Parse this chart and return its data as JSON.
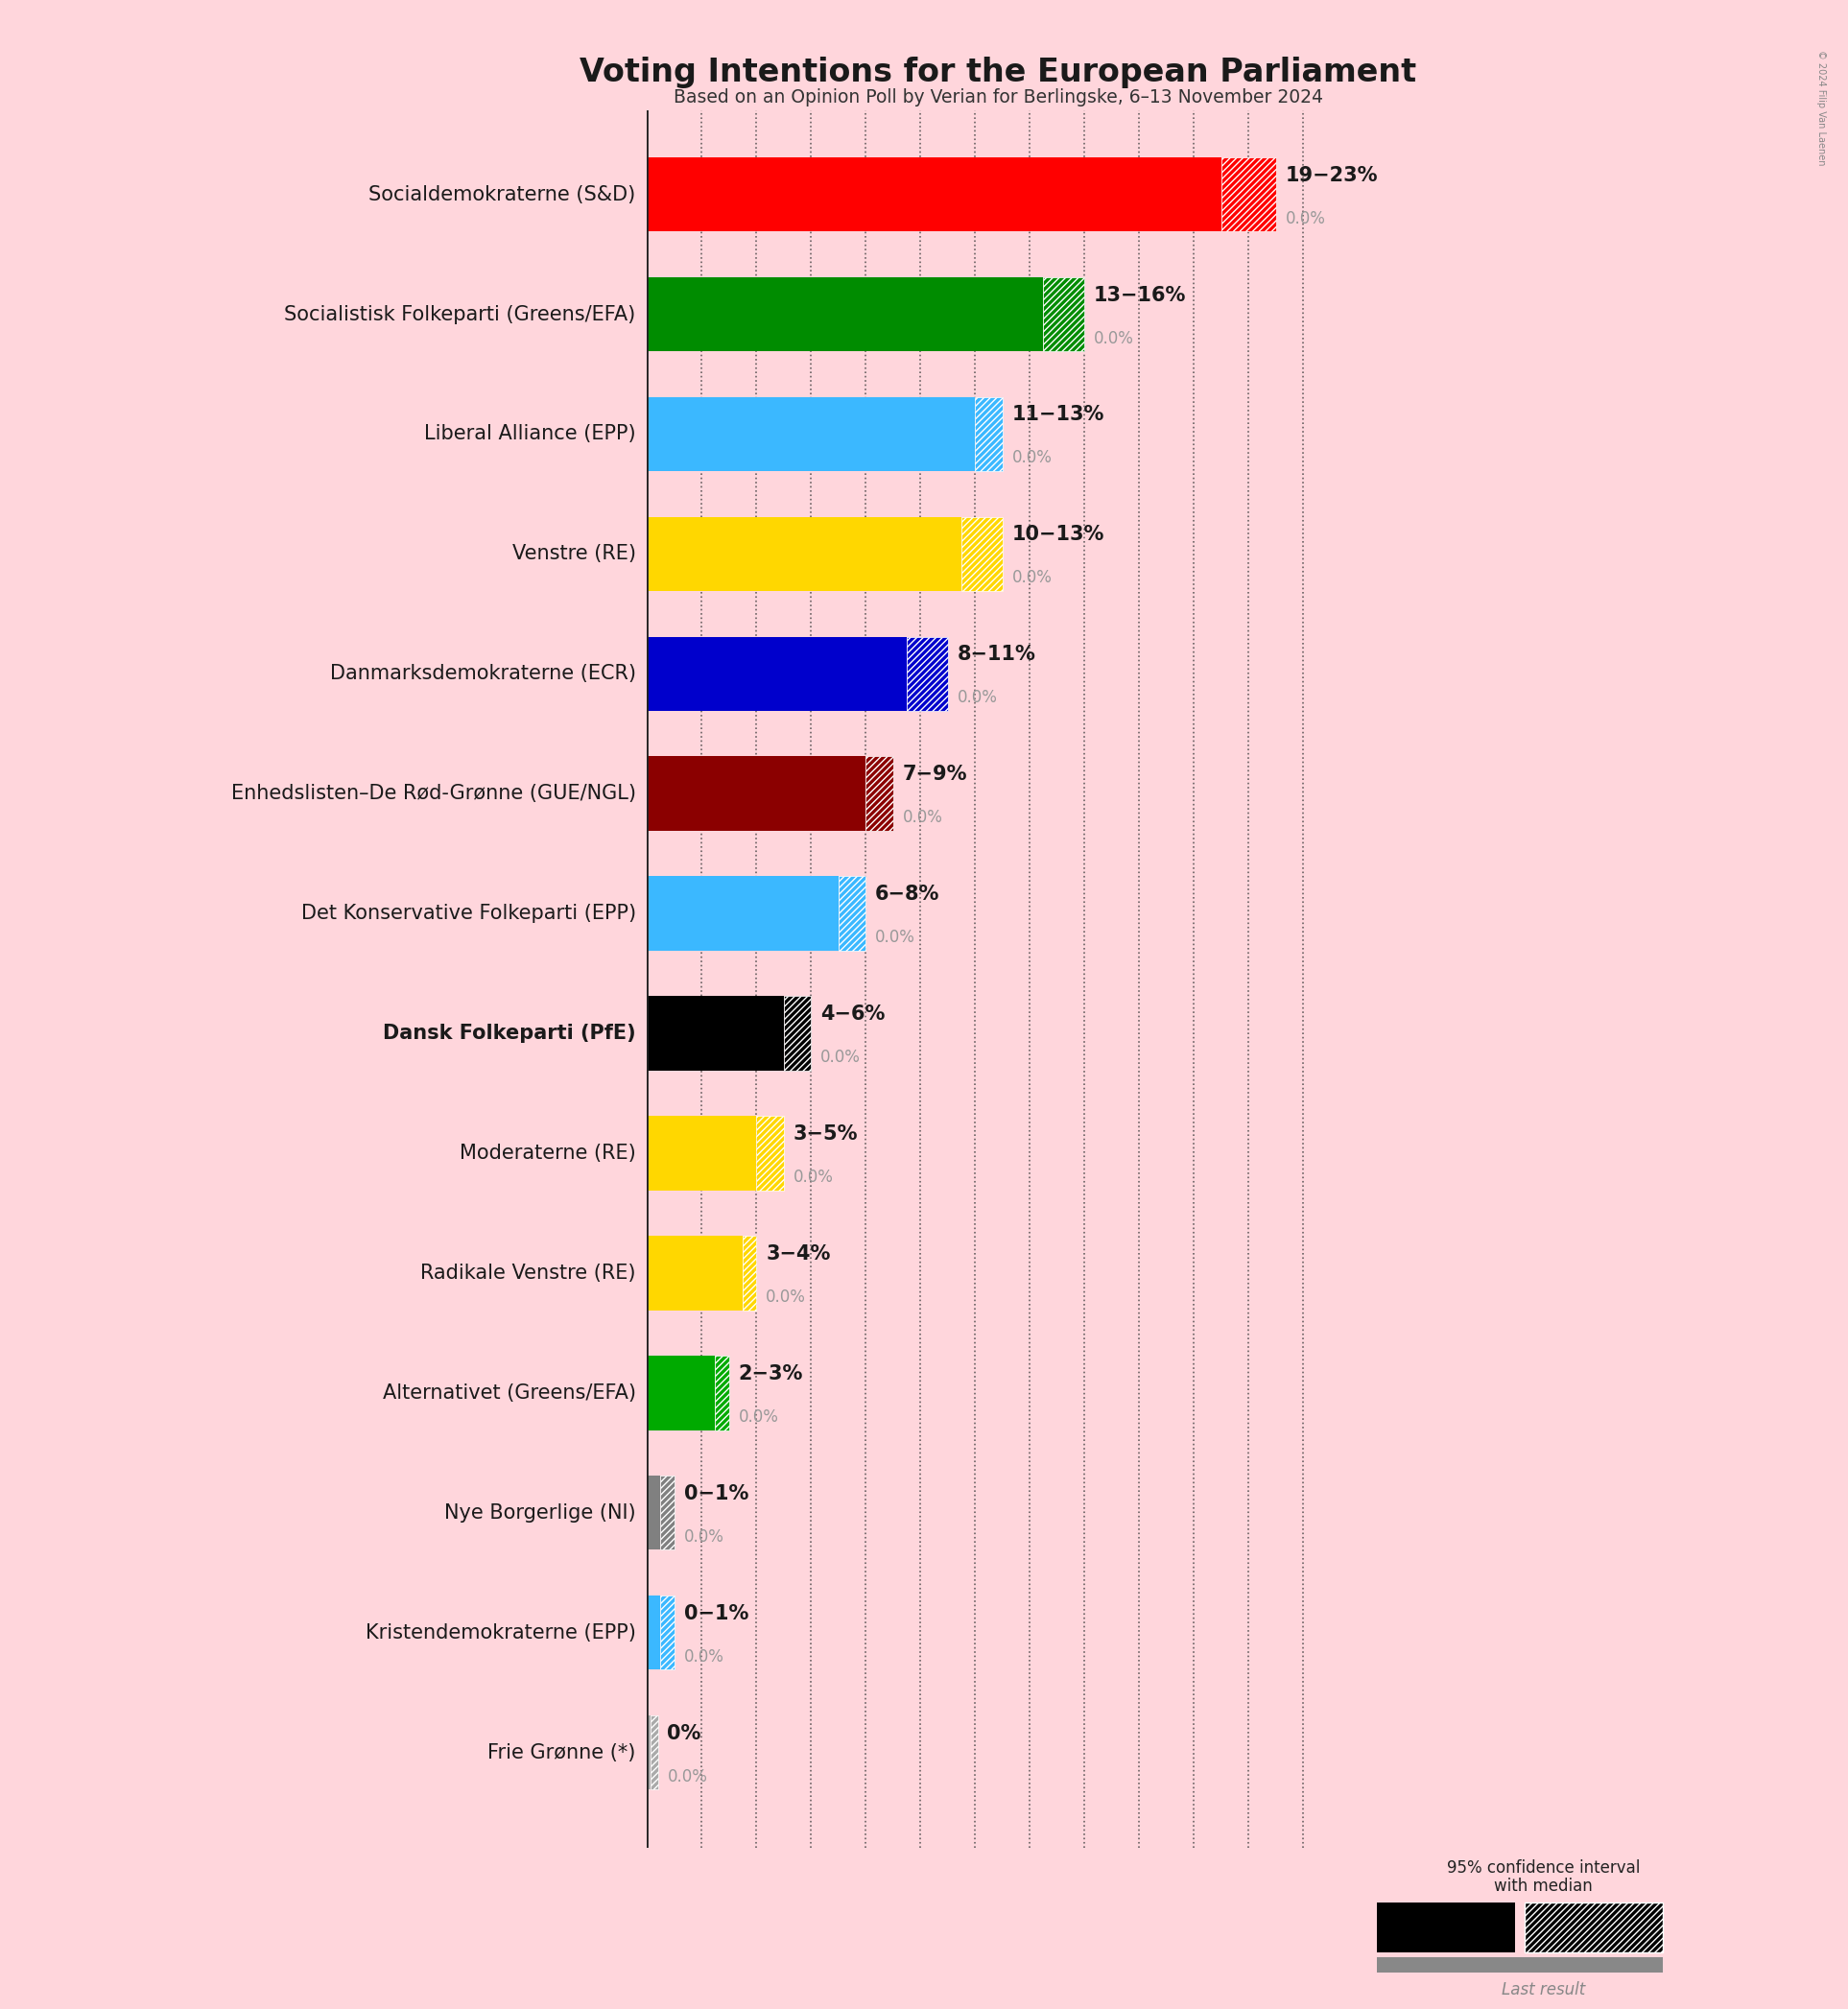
{
  "title": "Voting Intentions for the European Parliament",
  "subtitle": "Based on an Opinion Poll by Verian for Berlingske, 6–13 November 2024",
  "background_color": "#FFD6DC",
  "parties": [
    {
      "name": "Socialdemokraterne (S&D)",
      "color": "#FF0000",
      "median": 21.0,
      "low": 19.0,
      "high": 23.0,
      "last": 0.0,
      "label": "19−23%",
      "bold": false
    },
    {
      "name": "Socialistisk Folkeparti (Greens/EFA)",
      "color": "#008C00",
      "median": 14.5,
      "low": 13.0,
      "high": 16.0,
      "last": 0.0,
      "label": "13−16%",
      "bold": false
    },
    {
      "name": "Liberal Alliance (EPP)",
      "color": "#3BB8FF",
      "median": 12.0,
      "low": 11.0,
      "high": 13.0,
      "last": 0.0,
      "label": "11−13%",
      "bold": false
    },
    {
      "name": "Venstre (RE)",
      "color": "#FFD700",
      "median": 11.5,
      "low": 10.0,
      "high": 13.0,
      "last": 0.0,
      "label": "10−13%",
      "bold": false
    },
    {
      "name": "Danmarksdemokraterne (ECR)",
      "color": "#0000CC",
      "median": 9.5,
      "low": 8.0,
      "high": 11.0,
      "last": 0.0,
      "label": "8−11%",
      "bold": false
    },
    {
      "name": "Enhedslisten–De Rød-Grønne (GUE/NGL)",
      "color": "#8B0000",
      "median": 8.0,
      "low": 7.0,
      "high": 9.0,
      "last": 0.0,
      "label": "7−9%",
      "bold": false
    },
    {
      "name": "Det Konservative Folkeparti (EPP)",
      "color": "#3BB8FF",
      "median": 7.0,
      "low": 6.0,
      "high": 8.0,
      "last": 0.0,
      "label": "6−8%",
      "bold": false
    },
    {
      "name": "Dansk Folkeparti (PfE)",
      "color": "#000000",
      "median": 5.0,
      "low": 4.0,
      "high": 6.0,
      "last": 0.0,
      "label": "4−6%",
      "bold": true
    },
    {
      "name": "Moderaterne (RE)",
      "color": "#FFD700",
      "median": 4.0,
      "low": 3.0,
      "high": 5.0,
      "last": 0.0,
      "label": "3−5%",
      "bold": false
    },
    {
      "name": "Radikale Venstre (RE)",
      "color": "#FFD700",
      "median": 3.5,
      "low": 3.0,
      "high": 4.0,
      "last": 0.0,
      "label": "3−4%",
      "bold": false
    },
    {
      "name": "Alternativet (Greens/EFA)",
      "color": "#00AA00",
      "median": 2.5,
      "low": 2.0,
      "high": 3.0,
      "last": 0.0,
      "label": "2−3%",
      "bold": false
    },
    {
      "name": "Nye Borgerlige (NI)",
      "color": "#808080",
      "median": 0.5,
      "low": 0.0,
      "high": 1.0,
      "last": 0.0,
      "label": "0−1%",
      "bold": false
    },
    {
      "name": "Kristendemokraterne (EPP)",
      "color": "#3BB8FF",
      "median": 0.5,
      "low": 0.0,
      "high": 1.0,
      "last": 0.0,
      "label": "0−1%",
      "bold": false
    },
    {
      "name": "Frie Grønne (*)",
      "color": "#AAAAAA",
      "median": 0.15,
      "low": 0.0,
      "high": 0.4,
      "last": 0.0,
      "label": "0%",
      "bold": false
    }
  ],
  "xlim": [
    0,
    25
  ],
  "gridlines": [
    0,
    2,
    4,
    6,
    8,
    10,
    12,
    14,
    16,
    18,
    20,
    22,
    24
  ],
  "label_fontsize": 15,
  "range_fontsize": 15,
  "last_fontsize": 12
}
